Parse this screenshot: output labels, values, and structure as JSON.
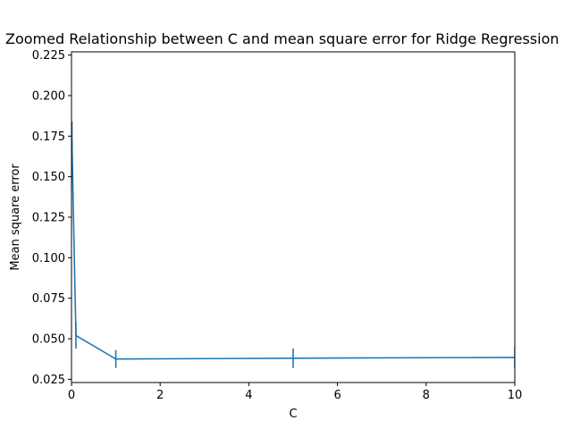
{
  "chart_data": {
    "type": "line",
    "title": "Zoomed Relationship between C and mean square error for Ridge Regression",
    "xlabel": "C",
    "ylabel": "Mean square error",
    "xlim": [
      0,
      10
    ],
    "ylim": [
      0.023,
      0.227
    ],
    "xticks": [
      0,
      2,
      4,
      6,
      8,
      10
    ],
    "xtick_labels": [
      "0",
      "2",
      "4",
      "6",
      "8",
      "10"
    ],
    "yticks": [
      0.025,
      0.05,
      0.075,
      0.1,
      0.125,
      0.15,
      0.175,
      0.2,
      0.225
    ],
    "ytick_labels": [
      "0.025",
      "0.050",
      "0.075",
      "0.100",
      "0.125",
      "0.150",
      "0.175",
      "0.200",
      "0.225"
    ],
    "grid": false,
    "series": [
      {
        "color": "#1f77b4",
        "points": [
          {
            "x": 0.01,
            "y": 0.172,
            "err": 0.012
          },
          {
            "x": 0.1,
            "y": 0.052,
            "err": 0.008
          },
          {
            "x": 1,
            "y": 0.0375,
            "err": 0.0055
          },
          {
            "x": 5,
            "y": 0.038,
            "err": 0.006
          },
          {
            "x": 10,
            "y": 0.0385,
            "err": 0.0065
          }
        ]
      }
    ]
  }
}
